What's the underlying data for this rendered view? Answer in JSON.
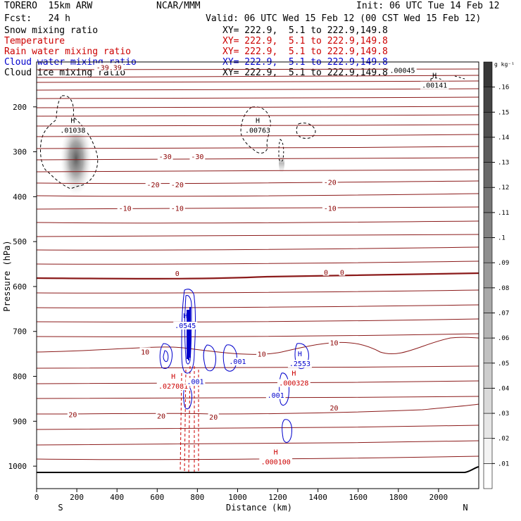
{
  "header": {
    "model": "TORERO  15km ARW",
    "center": "NCAR/MMM",
    "init": "Init: 06 UTC Tue 14 Feb 12",
    "fcst": "Fcst:   24 h",
    "valid": "Valid: 06 UTC Wed 15 Feb 12 (00 CST Wed 15 Feb 12)"
  },
  "fields": [
    {
      "label": "Snow mixing ratio",
      "xy": "XY= 222.9,  5.1 to 222.9,149.8",
      "color": "#000000"
    },
    {
      "label": "Temperature",
      "xy": "XY= 222.9,  5.1 to 222.9,149.8",
      "color": "#cc0000"
    },
    {
      "label": "Rain water mixing ratio",
      "xy": "XY= 222.9,  5.1 to 222.9,149.8",
      "color": "#cc0000"
    },
    {
      "label": "Cloud water mixing ratio",
      "xy": "XY= 222.9,  5.1 to 222.9,149.8",
      "color": "#0000cc"
    },
    {
      "label": "Cloud ice mixing ratio",
      "xy": "XY= 222.9,  5.1 to 222.9,149.8",
      "color": "#000000"
    }
  ],
  "chart_data": {
    "type": "cross-section",
    "xlabel": "Distance (km)",
    "ylabel": "Pressure (hPa)",
    "xlim": [
      0,
      2200
    ],
    "ylim": [
      1050,
      100
    ],
    "xticks": [
      "0",
      "200",
      "400",
      "600",
      "800",
      "1000",
      "1200",
      "1400",
      "1600",
      "1800",
      "2000"
    ],
    "yticks": [
      "200",
      "300",
      "400",
      "500",
      "600",
      "700",
      "800",
      "900",
      "1000"
    ],
    "end_labels": {
      "left": "S",
      "right": "N"
    },
    "colorbar": {
      "unit": "g kg⁻¹",
      "ticks": [
        ".01",
        ".02",
        ".03",
        ".04",
        ".05",
        ".06",
        ".07",
        ".08",
        ".09",
        ".1",
        ".11",
        ".12",
        ".13",
        ".14",
        ".15",
        ".16"
      ]
    },
    "temperature_labels": [
      {
        "text": "-39.39",
        "x": 360,
        "y": 112,
        "color": "#8b0000"
      },
      {
        "text": "-30",
        "x": 640,
        "y": 310,
        "color": "#8b0000"
      },
      {
        "text": "-30",
        "x": 800,
        "y": 310,
        "color": "#8b0000"
      },
      {
        "text": "-20",
        "x": 580,
        "y": 373,
        "color": "#8b0000"
      },
      {
        "text": "-20",
        "x": 700,
        "y": 373,
        "color": "#8b0000"
      },
      {
        "text": "-20",
        "x": 1460,
        "y": 367,
        "color": "#8b0000"
      },
      {
        "text": "-10",
        "x": 440,
        "y": 425,
        "color": "#8b0000"
      },
      {
        "text": "-10",
        "x": 700,
        "y": 425,
        "color": "#8b0000"
      },
      {
        "text": "-10",
        "x": 1460,
        "y": 425,
        "color": "#8b0000"
      },
      {
        "text": "0",
        "x": 700,
        "y": 570,
        "color": "#8b0000"
      },
      {
        "text": "0",
        "x": 1440,
        "y": 568,
        "color": "#8b0000"
      },
      {
        "text": "0",
        "x": 1520,
        "y": 568,
        "color": "#8b0000"
      },
      {
        "text": "10",
        "x": 540,
        "y": 745,
        "color": "#8b0000"
      },
      {
        "text": "10",
        "x": 1120,
        "y": 750,
        "color": "#8b0000"
      },
      {
        "text": "10",
        "x": 1480,
        "y": 725,
        "color": "#8b0000"
      },
      {
        "text": "20",
        "x": 180,
        "y": 885,
        "color": "#8b0000"
      },
      {
        "text": "20",
        "x": 620,
        "y": 888,
        "color": "#8b0000"
      },
      {
        "text": "20",
        "x": 880,
        "y": 890,
        "color": "#8b0000"
      },
      {
        "text": "20",
        "x": 1480,
        "y": 870,
        "color": "#8b0000"
      }
    ],
    "maxima_labels": [
      {
        "h": "H",
        "value": ".01038",
        "x": 180,
        "y": 245,
        "color": "#000000"
      },
      {
        "h": "H",
        "value": ".00763",
        "x": 1100,
        "y": 245,
        "color": "#000000"
      },
      {
        "h": "H",
        "value": ".00141",
        "x": 1980,
        "y": 145,
        "color": "#000000"
      },
      {
        "h": "",
        "value": ".00045",
        "x": 1820,
        "y": 112,
        "color": "#000000"
      },
      {
        "h": "H",
        "value": ".0545",
        "x": 740,
        "y": 680,
        "color": "#0000cc"
      },
      {
        "h": "H",
        "value": ".027081",
        "x": 680,
        "y": 815,
        "color": "#cc0000"
      },
      {
        "h": "",
        "value": ".001",
        "x": 790,
        "y": 805,
        "color": "#0000cc"
      },
      {
        "h": "",
        "value": ".001",
        "x": 1000,
        "y": 760,
        "color": "#0000cc"
      },
      {
        "h": "H",
        "value": ".2553",
        "x": 1310,
        "y": 765,
        "color": "#0000cc"
      },
      {
        "h": "H",
        "value": ".000328",
        "x": 1280,
        "y": 808,
        "color": "#cc0000"
      },
      {
        "h": "",
        "value": ".001",
        "x": 1190,
        "y": 835,
        "color": "#0000cc"
      },
      {
        "h": "H",
        "value": ".000100",
        "x": 1190,
        "y": 983,
        "color": "#cc0000"
      }
    ]
  }
}
